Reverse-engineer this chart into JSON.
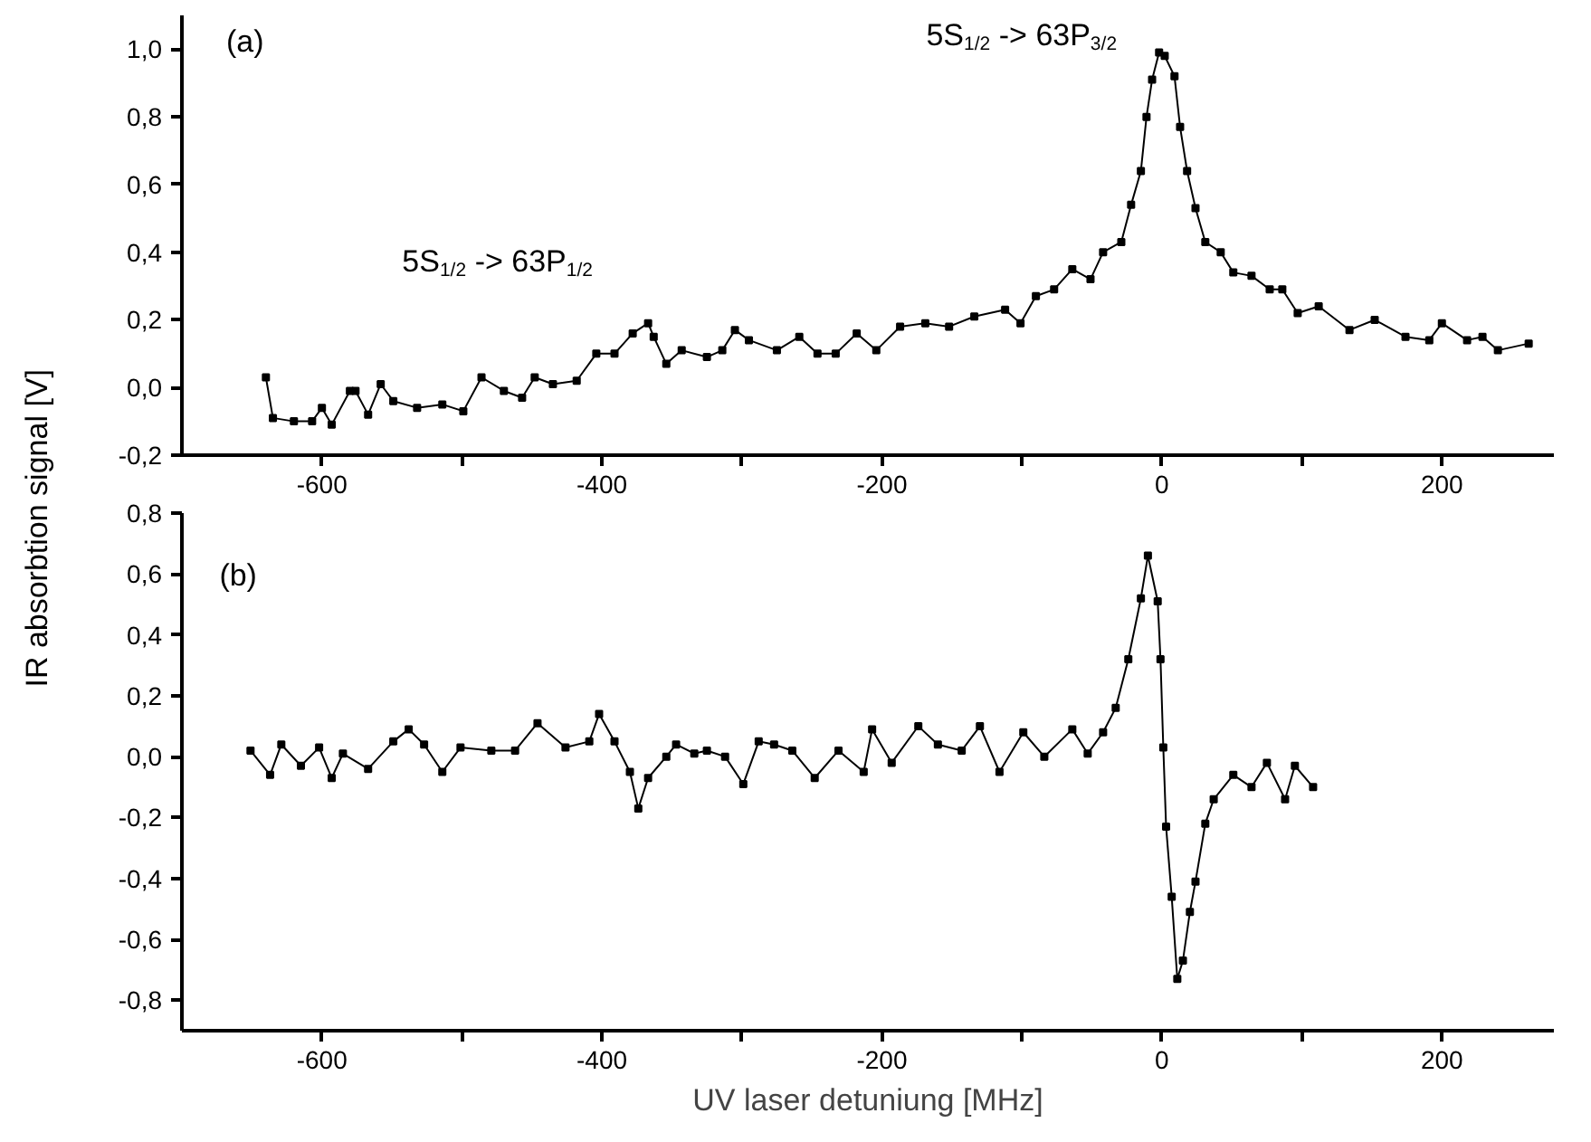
{
  "chart_data": [
    {
      "type": "line",
      "marker": "square",
      "line_style": "solid",
      "grid": false,
      "ylabel": "IR absorbtion signal [V]",
      "annotations": [
        "(a)",
        "5S$_{1/2}$ -> 63P$_{1/2}$",
        "5S$_{1/2}$ -> 63P$_{3/2}$"
      ],
      "xlim": [
        -700,
        280
      ],
      "ylim": [
        -0.2,
        1.1
      ],
      "xticks": [
        -600,
        {
          "value": -500,
          "label": null
        },
        -400,
        {
          "value": -300,
          "label": null
        },
        -200,
        {
          "value": -100,
          "label": null
        },
        0,
        {
          "value": 100,
          "label": null
        },
        200
      ],
      "yticks": [
        {
          "value": -0.2,
          "label": "-0,2"
        },
        {
          "value": 0.0,
          "label": "0,0"
        },
        {
          "value": 0.2,
          "label": "0,2"
        },
        {
          "value": 0.4,
          "label": "0,4"
        },
        {
          "value": 0.6,
          "label": "0,6"
        },
        {
          "value": 0.8,
          "label": "0,8"
        },
        {
          "value": 1.0,
          "label": "1,0"
        }
      ],
      "series": [
        {
          "color": "#000000",
          "x": [
            -640,
            -635,
            -620,
            -607,
            -600,
            -593,
            -580,
            -576,
            -567,
            -558,
            -549,
            -532,
            -514,
            -499,
            -486,
            -470,
            -457,
            -448,
            -435,
            -418,
            -404,
            -391,
            -378,
            -367,
            -363,
            -354,
            -343,
            -325,
            -314,
            -305,
            -295,
            -275,
            -259,
            -246,
            -233,
            -218,
            -204,
            -187,
            -169,
            -152,
            -134,
            -112,
            -101,
            -90,
            -77,
            -64,
            -51,
            -42,
            -29,
            -22,
            -15,
            -11,
            -7,
            -2,
            2,
            9,
            13,
            18,
            24,
            31,
            42,
            51,
            64,
            77,
            86,
            97,
            112,
            134,
            152,
            174,
            191,
            200,
            218,
            229,
            240,
            262
          ],
          "values": [
            0.03,
            -0.09,
            -0.1,
            -0.1,
            -0.06,
            -0.11,
            -0.01,
            -0.01,
            -0.08,
            0.01,
            -0.04,
            -0.06,
            -0.05,
            -0.07,
            0.03,
            -0.01,
            -0.03,
            0.03,
            0.01,
            0.02,
            0.1,
            0.1,
            0.16,
            0.19,
            0.15,
            0.07,
            0.11,
            0.09,
            0.11,
            0.17,
            0.14,
            0.11,
            0.15,
            0.1,
            0.1,
            0.16,
            0.11,
            0.18,
            0.19,
            0.18,
            0.21,
            0.23,
            0.19,
            0.27,
            0.29,
            0.35,
            0.32,
            0.4,
            0.43,
            0.54,
            0.64,
            0.8,
            0.91,
            0.99,
            0.98,
            0.92,
            0.77,
            0.64,
            0.53,
            0.43,
            0.4,
            0.34,
            0.33,
            0.29,
            0.29,
            0.22,
            0.24,
            0.17,
            0.2,
            0.15,
            0.14,
            0.19,
            0.14,
            0.15,
            0.11,
            0.13
          ]
        }
      ]
    },
    {
      "type": "line",
      "marker": "square",
      "line_style": "solid",
      "grid": false,
      "xlabel": "UV laser detuniung [MHz]",
      "annotations": [
        "(b)"
      ],
      "xlim": [
        -700,
        280
      ],
      "ylim": [
        -0.9,
        0.8
      ],
      "xticks": [
        -600,
        {
          "value": -500,
          "label": null
        },
        -400,
        {
          "value": -300,
          "label": null
        },
        -200,
        {
          "value": -100,
          "label": null
        },
        0,
        {
          "value": 100,
          "label": null
        },
        200
      ],
      "yticks": [
        {
          "value": -0.8,
          "label": "-0,8"
        },
        {
          "value": -0.6,
          "label": "-0,6"
        },
        {
          "value": -0.4,
          "label": "-0,4"
        },
        {
          "value": -0.2,
          "label": "-0,2"
        },
        {
          "value": 0.0,
          "label": "0,0"
        },
        {
          "value": 0.2,
          "label": "0,2"
        },
        {
          "value": 0.4,
          "label": "0,4"
        },
        {
          "value": 0.6,
          "label": "0,6"
        },
        {
          "value": 0.8,
          "label": "0,8"
        }
      ],
      "series": [
        {
          "color": "#000000",
          "x": [
            -651,
            -637,
            -629,
            -615,
            -602,
            -593,
            -585,
            -567,
            -549,
            -538,
            -527,
            -514,
            -501,
            -479,
            -462,
            -446,
            -426,
            -409,
            -402,
            -391,
            -380,
            -374,
            -367,
            -354,
            -347,
            -334,
            -325,
            -312,
            -299,
            -288,
            -277,
            -264,
            -248,
            -231,
            -213,
            -207,
            -193,
            -174,
            -160,
            -143,
            -130,
            -116,
            -99,
            -84,
            -64,
            -53,
            -42,
            -33,
            -24,
            -15,
            -10,
            -3,
            -1,
            1,
            3,
            7,
            11,
            15,
            20,
            24,
            31,
            37,
            51,
            64,
            75,
            88,
            95,
            108
          ],
          "values": [
            0.02,
            -0.06,
            0.04,
            -0.03,
            0.03,
            -0.07,
            0.01,
            -0.04,
            0.05,
            0.09,
            0.04,
            -0.05,
            0.03,
            0.02,
            0.02,
            0.11,
            0.03,
            0.05,
            0.14,
            0.05,
            -0.05,
            -0.17,
            -0.07,
            0.0,
            0.04,
            0.01,
            0.02,
            0.0,
            -0.09,
            0.05,
            0.04,
            0.02,
            -0.07,
            0.02,
            -0.05,
            0.09,
            -0.02,
            0.1,
            0.04,
            0.02,
            0.1,
            -0.05,
            0.08,
            0.0,
            0.09,
            0.01,
            0.08,
            0.16,
            0.32,
            0.52,
            0.66,
            0.51,
            0.32,
            0.03,
            -0.23,
            -0.46,
            -0.73,
            -0.67,
            -0.51,
            -0.41,
            -0.22,
            -0.14,
            -0.06,
            -0.1,
            -0.02,
            -0.14,
            -0.03,
            -0.1
          ]
        }
      ]
    }
  ]
}
